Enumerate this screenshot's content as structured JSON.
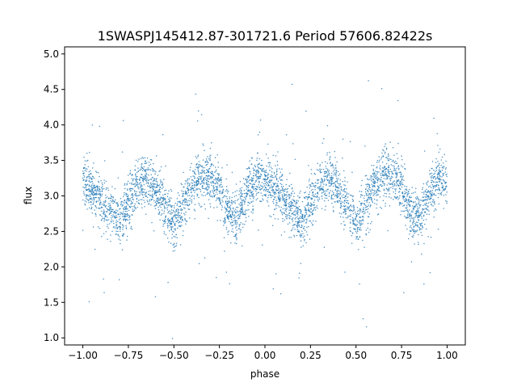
{
  "chart_data": {
    "type": "scatter",
    "title": "1SWASPJ145412.87-301721.6 Period 57606.82422s",
    "xlabel": "phase",
    "ylabel": "flux",
    "xlim": [
      -1.1,
      1.1
    ],
    "ylim": [
      0.9,
      5.1
    ],
    "xticks": [
      -1.0,
      -0.75,
      -0.5,
      -0.25,
      0.0,
      0.25,
      0.5,
      0.75,
      1.0
    ],
    "xtick_labels": [
      "−1.00",
      "−0.75",
      "−0.50",
      "−0.25",
      "0.00",
      "0.25",
      "0.50",
      "0.75",
      "1.00"
    ],
    "yticks": [
      1.0,
      1.5,
      2.0,
      2.5,
      3.0,
      3.5,
      4.0,
      4.5,
      5.0
    ],
    "ytick_labels": [
      "1.0",
      "1.5",
      "2.0",
      "2.5",
      "3.0",
      "3.5",
      "4.0",
      "4.5",
      "5.0"
    ],
    "grid": false,
    "marker_color": "#1f77b4",
    "series": [
      {
        "x": [
          -1.0,
          -0.95,
          -0.9,
          -0.85,
          -0.8,
          -0.75,
          -0.7,
          -0.65,
          -0.6,
          -0.55,
          -0.5,
          -0.45,
          -0.4,
          -0.35,
          -0.3,
          -0.25,
          -0.2,
          -0.15,
          -0.1,
          -0.05,
          0.0,
          0.05,
          0.1,
          0.15,
          0.2,
          0.25,
          0.3,
          0.35,
          0.4,
          0.45,
          0.5,
          0.55,
          0.6,
          0.65,
          0.7,
          0.75,
          0.8,
          0.85,
          0.9,
          0.95,
          1.0
        ],
        "y": [
          3.2,
          3.1,
          2.95,
          2.8,
          2.6,
          2.95,
          3.15,
          3.25,
          3.1,
          2.85,
          2.55,
          2.85,
          3.15,
          3.3,
          3.25,
          3.1,
          2.75,
          2.7,
          3.05,
          3.25,
          3.2,
          3.1,
          2.95,
          2.8,
          2.6,
          2.95,
          3.15,
          3.25,
          3.1,
          2.85,
          2.55,
          2.85,
          3.15,
          3.3,
          3.25,
          3.1,
          2.75,
          2.7,
          3.05,
          3.25,
          3.2
        ]
      }
    ]
  }
}
